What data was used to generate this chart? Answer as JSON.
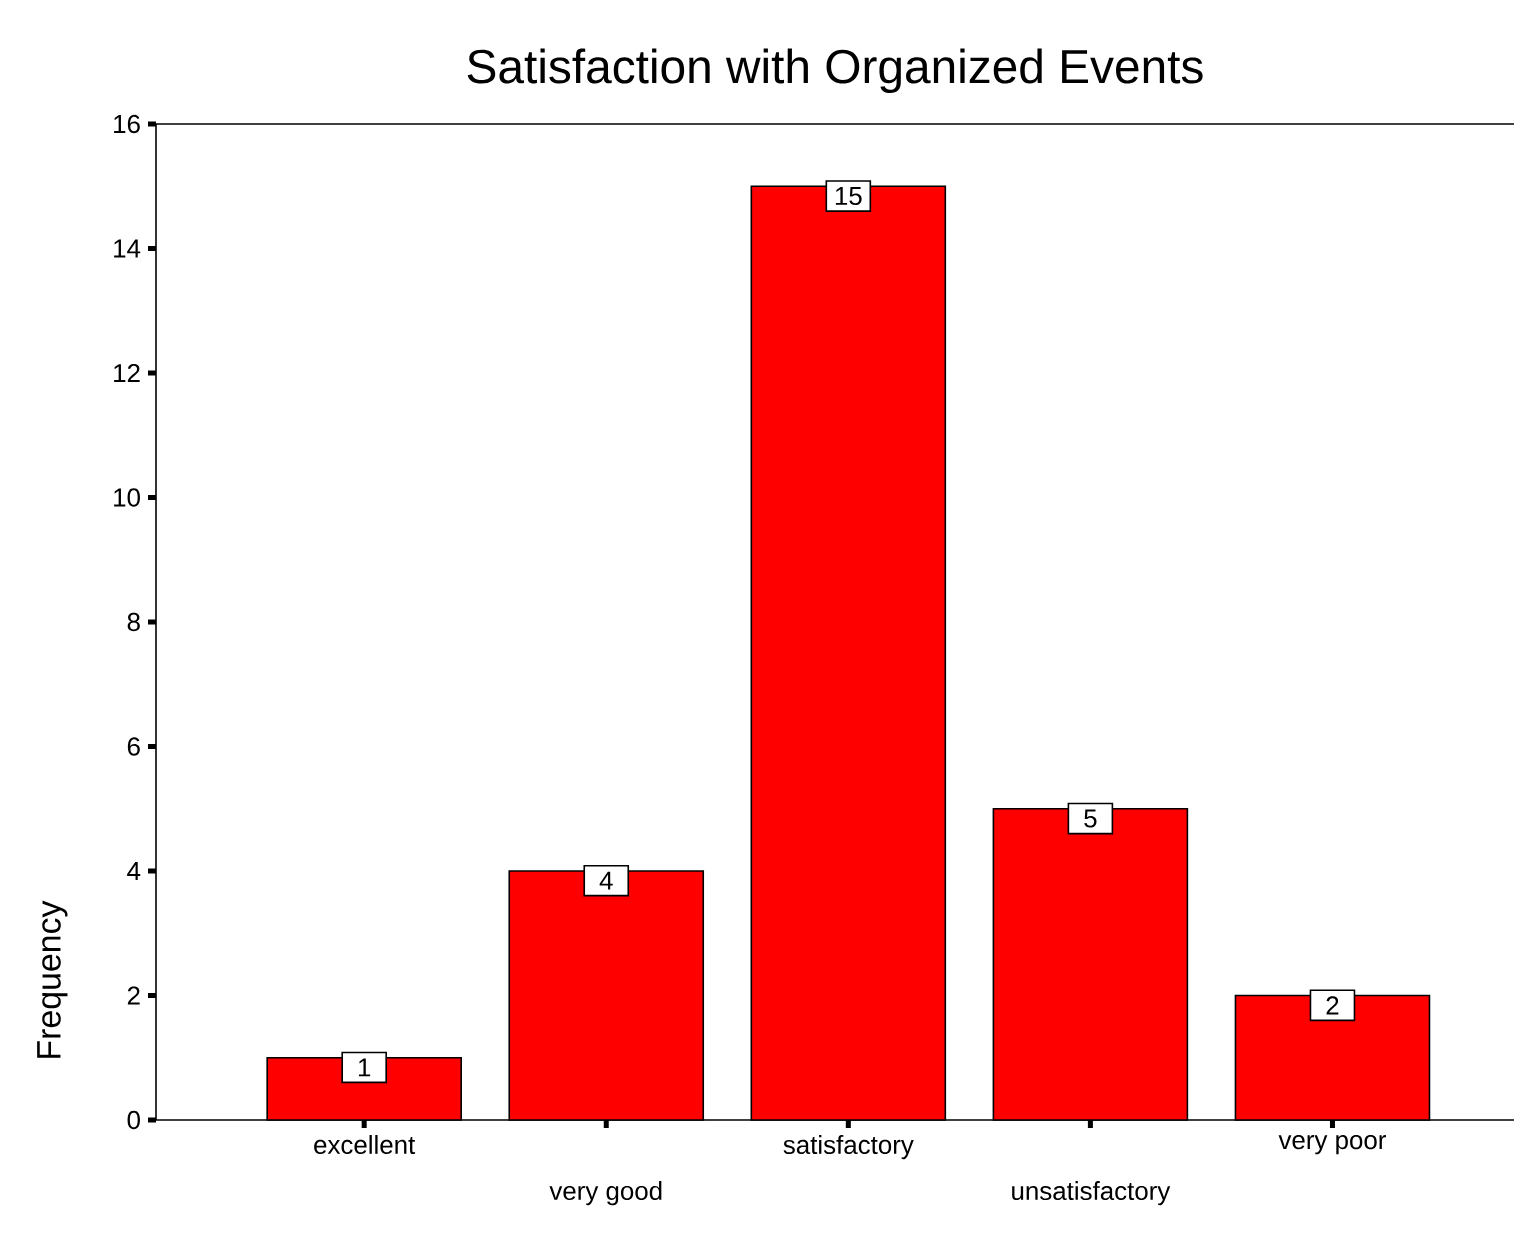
{
  "chart_data": {
    "type": "bar",
    "title": "Satisfaction with Organized Events",
    "ylabel": "Frequency",
    "categories": [
      "excellent",
      "very good",
      "satisfactory",
      "unsatisfactory",
      "very poor"
    ],
    "values": [
      1,
      4,
      15,
      5,
      2
    ],
    "color": "#ff0000",
    "ylim": [
      0,
      16
    ],
    "yticks": [
      0,
      2,
      4,
      6,
      8,
      10,
      12,
      14,
      16
    ],
    "data_labels": true,
    "grid": false
  }
}
